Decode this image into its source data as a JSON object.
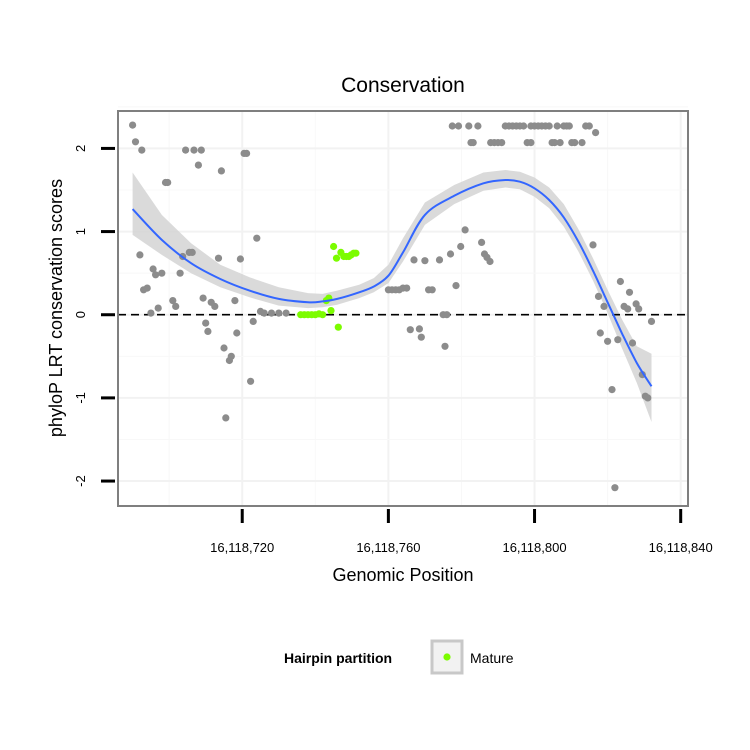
{
  "chart_data": {
    "type": "scatter",
    "title": "Conservation",
    "xlabel": "Genomic Position",
    "ylabel": "phyloP LRT conservation scores",
    "xlim": [
      16118686,
      16118842
    ],
    "ylim": [
      -2.3,
      2.45
    ],
    "x_ticks": [
      16118720,
      16118760,
      16118800,
      16118840
    ],
    "x_tick_labels": [
      "16,118,720",
      "16,118,760",
      "16,118,800",
      "16,118,840"
    ],
    "y_ticks": [
      2,
      1,
      0,
      -1,
      -2
    ],
    "y_tick_labels": [
      "2",
      "1",
      "0",
      "-1",
      "-2"
    ],
    "reference_line": {
      "y": 0,
      "style": "dashed"
    },
    "legend": {
      "title": "Hairpin partition",
      "entries": [
        {
          "label": "Mature",
          "color": "#7cfc00"
        }
      ],
      "placement": "bottom"
    },
    "colors": {
      "other": "#8c8c8c",
      "mature": "#7cfc00",
      "smooth": "#3366ff",
      "band": "#d4d4d4",
      "panel_border": "#7f7f7f"
    },
    "series": [
      {
        "name": "Other",
        "points": [
          [
            16118690,
            2.28
          ],
          [
            16118690.8,
            2.08
          ],
          [
            16118692,
            0.72
          ],
          [
            16118692.5,
            1.98
          ],
          [
            16118693,
            0.3
          ],
          [
            16118694,
            0.32
          ],
          [
            16118695,
            0.02
          ],
          [
            16118695.6,
            0.55
          ],
          [
            16118696.3,
            0.48
          ],
          [
            16118697,
            0.08
          ],
          [
            16118698,
            0.5
          ],
          [
            16118699,
            1.59
          ],
          [
            16118699.6,
            1.59
          ],
          [
            16118701,
            0.17
          ],
          [
            16118701.8,
            0.1
          ],
          [
            16118703,
            0.5
          ],
          [
            16118703.7,
            0.7
          ],
          [
            16118704.5,
            1.98
          ],
          [
            16118705.5,
            0.75
          ],
          [
            16118706.3,
            0.75
          ],
          [
            16118706.8,
            1.98
          ],
          [
            16118708,
            1.8
          ],
          [
            16118708.8,
            1.98
          ],
          [
            16118709.3,
            0.2
          ],
          [
            16118710,
            -0.1
          ],
          [
            16118710.6,
            -0.2
          ],
          [
            16118711.5,
            0.15
          ],
          [
            16118712.5,
            0.1
          ],
          [
            16118713.5,
            0.68
          ],
          [
            16118714.3,
            1.73
          ],
          [
            16118715,
            -0.4
          ],
          [
            16118715.5,
            -1.24
          ],
          [
            16118716.5,
            -0.55
          ],
          [
            16118717,
            -0.5
          ],
          [
            16118718,
            0.17
          ],
          [
            16118718.5,
            -0.22
          ],
          [
            16118719.5,
            0.67
          ],
          [
            16118720.5,
            1.94
          ],
          [
            16118721.2,
            1.94
          ],
          [
            16118722.3,
            -0.8
          ],
          [
            16118723,
            -0.08
          ],
          [
            16118724,
            0.92
          ],
          [
            16118725,
            0.04
          ],
          [
            16118726,
            0.02
          ],
          [
            16118728,
            0.02
          ],
          [
            16118730,
            0.02
          ],
          [
            16118732,
            0.02
          ],
          [
            16118760,
            0.3
          ],
          [
            16118761,
            0.3
          ],
          [
            16118762,
            0.3
          ],
          [
            16118763,
            0.3
          ],
          [
            16118764,
            0.32
          ],
          [
            16118765,
            0.32
          ],
          [
            16118766,
            -0.18
          ],
          [
            16118767,
            0.66
          ],
          [
            16118768.5,
            -0.17
          ],
          [
            16118769,
            -0.27
          ],
          [
            16118770,
            0.65
          ],
          [
            16118771,
            0.3
          ],
          [
            16118772,
            0.3
          ],
          [
            16118774,
            0.66
          ],
          [
            16118775,
            0.0
          ],
          [
            16118775.5,
            -0.38
          ],
          [
            16118776,
            0.0
          ],
          [
            16118777,
            0.73
          ],
          [
            16118777.5,
            2.27
          ],
          [
            16118778.5,
            0.35
          ],
          [
            16118779.2,
            2.27
          ],
          [
            16118779.8,
            0.82
          ],
          [
            16118781,
            1.02
          ],
          [
            16118782,
            2.27
          ],
          [
            16118782.6,
            2.07
          ],
          [
            16118783.2,
            2.07
          ],
          [
            16118784.5,
            2.27
          ],
          [
            16118785.5,
            0.87
          ],
          [
            16118786.3,
            0.73
          ],
          [
            16118787,
            0.69
          ],
          [
            16118787.8,
            0.64
          ],
          [
            16118788,
            2.07
          ],
          [
            16118789,
            2.07
          ],
          [
            16118790,
            2.07
          ],
          [
            16118791,
            2.07
          ],
          [
            16118792,
            2.27
          ],
          [
            16118793,
            2.27
          ],
          [
            16118794,
            2.27
          ],
          [
            16118795,
            2.27
          ],
          [
            16118796,
            2.27
          ],
          [
            16118797,
            2.27
          ],
          [
            16118798,
            2.07
          ],
          [
            16118799,
            2.07
          ],
          [
            16118799,
            2.27
          ],
          [
            16118800,
            2.27
          ],
          [
            16118801,
            2.27
          ],
          [
            16118802,
            2.27
          ],
          [
            16118803,
            2.27
          ],
          [
            16118804,
            2.27
          ],
          [
            16118804.8,
            2.07
          ],
          [
            16118805.5,
            2.07
          ],
          [
            16118806.2,
            2.27
          ],
          [
            16118807,
            2.07
          ],
          [
            16118808,
            2.27
          ],
          [
            16118808.8,
            2.27
          ],
          [
            16118809.5,
            2.27
          ],
          [
            16118810.2,
            2.07
          ],
          [
            16118811,
            2.07
          ],
          [
            16118813,
            2.07
          ],
          [
            16118814,
            2.27
          ],
          [
            16118815,
            2.27
          ],
          [
            16118816,
            0.84
          ],
          [
            16118816.7,
            2.19
          ],
          [
            16118817.5,
            0.22
          ],
          [
            16118818,
            -0.22
          ],
          [
            16118819,
            0.1
          ],
          [
            16118820,
            -0.32
          ],
          [
            16118821.2,
            -0.9
          ],
          [
            16118822,
            -2.08
          ],
          [
            16118822.8,
            -0.3
          ],
          [
            16118823.5,
            0.4
          ],
          [
            16118824.5,
            0.1
          ],
          [
            16118825.5,
            0.07
          ],
          [
            16118826,
            0.27
          ],
          [
            16118826.8,
            -0.34
          ],
          [
            16118827.8,
            0.13
          ],
          [
            16118828.5,
            0.07
          ],
          [
            16118829.5,
            -0.72
          ],
          [
            16118830.3,
            -0.98
          ],
          [
            16118831,
            -1.0
          ],
          [
            16118832,
            -0.08
          ]
        ]
      },
      {
        "name": "Mature",
        "points": [
          [
            16118736,
            0.0
          ],
          [
            16118737,
            0.0
          ],
          [
            16118738,
            0.0
          ],
          [
            16118739,
            0.0
          ],
          [
            16118740,
            0.0
          ],
          [
            16118741,
            0.01
          ],
          [
            16118742,
            0.0
          ],
          [
            16118743,
            0.17
          ],
          [
            16118743.7,
            0.2
          ],
          [
            16118744.3,
            0.05
          ],
          [
            16118745,
            0.82
          ],
          [
            16118745.8,
            0.68
          ],
          [
            16118746.3,
            -0.15
          ],
          [
            16118747,
            0.75
          ],
          [
            16118747.8,
            0.7
          ],
          [
            16118748.5,
            0.7
          ],
          [
            16118749.2,
            0.7
          ],
          [
            16118749.8,
            0.72
          ],
          [
            16118750.5,
            0.74
          ],
          [
            16118751.1,
            0.74
          ]
        ]
      }
    ],
    "smooth": {
      "method": "loess",
      "x": [
        16118690,
        16118698,
        16118706,
        16118714,
        16118722,
        16118730,
        16118738,
        16118742,
        16118746,
        16118752,
        16118756,
        16118760,
        16118764,
        16118770,
        16118778,
        16118786,
        16118792,
        16118796,
        16118800,
        16118804,
        16118808,
        16118812,
        16118816,
        16118820,
        16118824,
        16118828,
        16118832
      ],
      "y": [
        1.27,
        0.9,
        0.62,
        0.43,
        0.29,
        0.19,
        0.15,
        0.16,
        0.19,
        0.27,
        0.34,
        0.47,
        0.75,
        1.2,
        1.43,
        1.58,
        1.62,
        1.6,
        1.52,
        1.38,
        1.17,
        0.88,
        0.53,
        0.15,
        -0.23,
        -0.58,
        -0.86
      ],
      "lower": [
        0.96,
        0.72,
        0.5,
        0.33,
        0.21,
        0.11,
        0.08,
        0.09,
        0.12,
        0.2,
        0.27,
        0.38,
        0.64,
        1.08,
        1.33,
        1.49,
        1.53,
        1.51,
        1.42,
        1.28,
        1.06,
        0.76,
        0.41,
        0.02,
        -0.41,
        -0.82,
        -1.29
      ],
      "upper": [
        1.71,
        1.2,
        0.86,
        0.6,
        0.45,
        0.33,
        0.26,
        0.25,
        0.29,
        0.36,
        0.44,
        0.6,
        0.92,
        1.35,
        1.56,
        1.71,
        1.74,
        1.72,
        1.65,
        1.53,
        1.33,
        1.03,
        0.68,
        0.3,
        -0.06,
        -0.38,
        -0.47
      ]
    }
  }
}
